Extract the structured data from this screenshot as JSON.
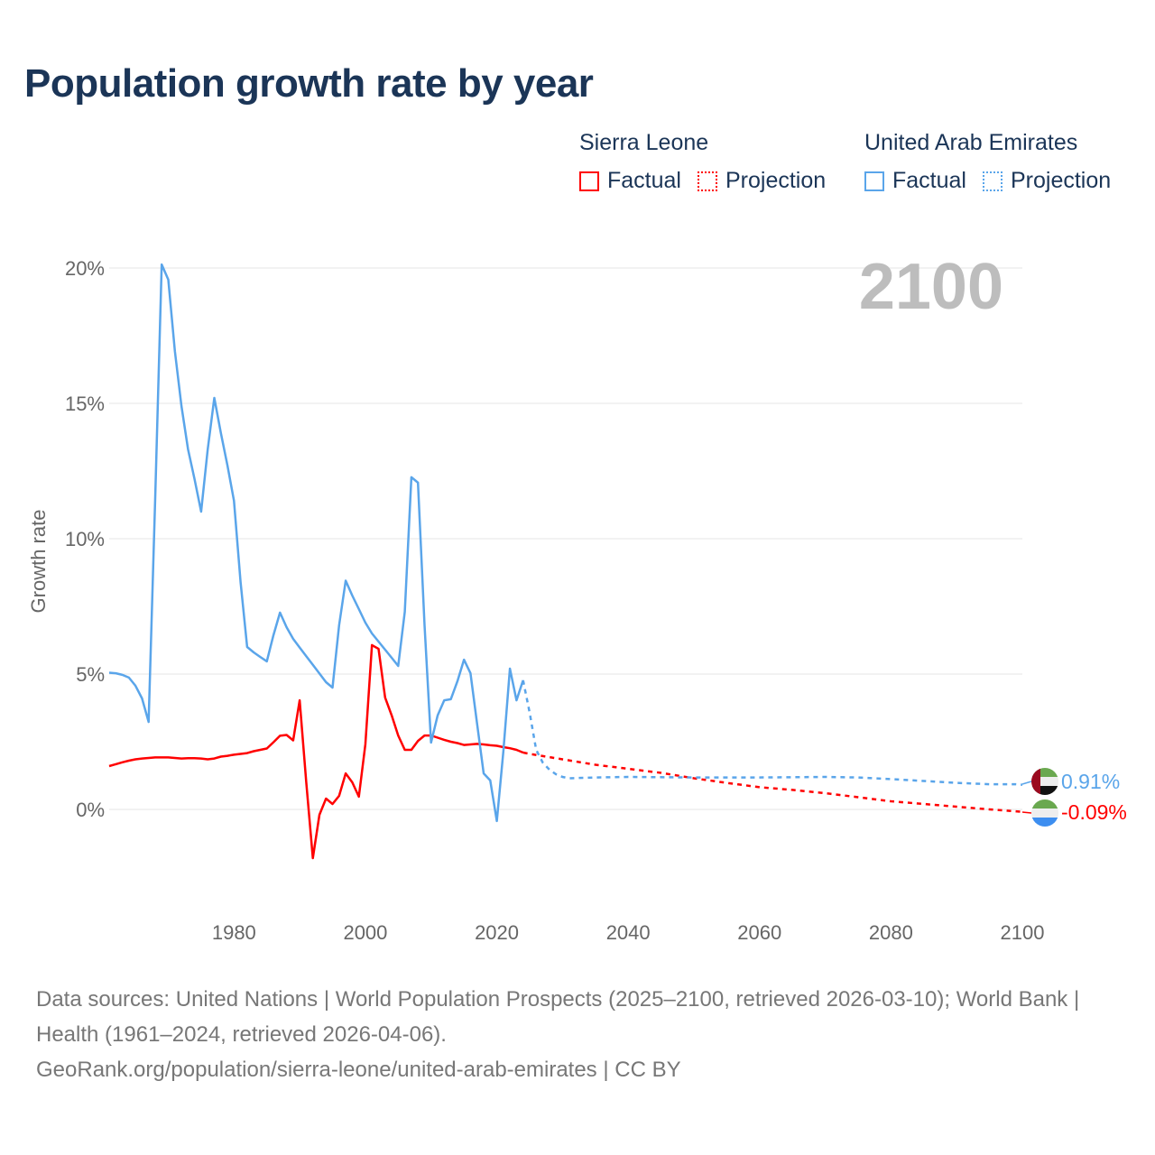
{
  "title": "Population growth rate by year",
  "legend": {
    "groups": [
      {
        "name": "Sierra Leone",
        "factual": "Factual",
        "projection": "Projection",
        "color": "#ff0000"
      },
      {
        "name": "United Arab Emirates",
        "factual": "Factual",
        "projection": "Projection",
        "color": "#5aa5ea"
      }
    ]
  },
  "year_label": "2100",
  "footer": {
    "sources": "Data sources: United Nations | World Population Prospects (2025–2100, retrieved 2026-03-10); World Bank | Health (1961–2024, retrieved 2026-04-06).",
    "url": "GeoRank.org/population/sierra-leone/united-arab-emirates | CC BY"
  },
  "chart_data": {
    "type": "line",
    "title": "Population growth rate by year",
    "xlabel": "",
    "ylabel": "Growth rate",
    "xlim": [
      1961,
      2100
    ],
    "ylim": [
      -3.5,
      20.5
    ],
    "x_ticks": [
      1980,
      2000,
      2020,
      2040,
      2060,
      2080,
      2100
    ],
    "x_tick_labels": [
      "1980",
      "2000",
      "2020",
      "2040",
      "2060",
      "2080",
      "2100"
    ],
    "y_ticks": [
      0,
      5,
      10,
      15,
      20
    ],
    "y_tick_labels": [
      "0%",
      "5%",
      "10%",
      "15%",
      "20%"
    ],
    "grid": true,
    "series": [
      {
        "name": "Sierra Leone",
        "color": "#ff0000",
        "end_label": "-0.09%",
        "factual": {
          "x": [
            1961,
            1962,
            1963,
            1964,
            1965,
            1966,
            1967,
            1968,
            1969,
            1970,
            1971,
            1972,
            1973,
            1974,
            1975,
            1976,
            1977,
            1978,
            1979,
            1980,
            1981,
            1982,
            1983,
            1984,
            1985,
            1986,
            1987,
            1988,
            1989,
            1990,
            1991,
            1992,
            1993,
            1994,
            1995,
            1996,
            1997,
            1998,
            1999,
            2000,
            2001,
            2002,
            2003,
            2004,
            2005,
            2006,
            2007,
            2008,
            2009,
            2010,
            2011,
            2012,
            2013,
            2014,
            2015,
            2016,
            2017,
            2018,
            2019,
            2020,
            2021,
            2022,
            2023,
            2024
          ],
          "y": [
            1.6,
            1.67,
            1.74,
            1.8,
            1.85,
            1.88,
            1.9,
            1.92,
            1.92,
            1.92,
            1.9,
            1.88,
            1.89,
            1.89,
            1.88,
            1.85,
            1.88,
            1.95,
            1.98,
            2.02,
            2.05,
            2.08,
            2.15,
            2.2,
            2.25,
            2.48,
            2.72,
            2.75,
            2.55,
            4.03,
            1.0,
            -1.8,
            -0.2,
            0.4,
            0.2,
            0.5,
            1.33,
            1.0,
            0.47,
            2.4,
            6.07,
            5.93,
            4.13,
            3.47,
            2.73,
            2.2,
            2.2,
            2.53,
            2.73,
            2.73,
            2.65,
            2.57,
            2.5,
            2.45,
            2.38,
            2.4,
            2.42,
            2.4,
            2.37,
            2.35,
            2.3,
            2.26,
            2.2,
            2.1
          ]
        },
        "projection": {
          "x": [
            2024,
            2025,
            2030,
            2035,
            2040,
            2045,
            2050,
            2055,
            2060,
            2065,
            2070,
            2075,
            2080,
            2085,
            2090,
            2095,
            2100
          ],
          "y": [
            2.1,
            2.05,
            1.85,
            1.65,
            1.5,
            1.35,
            1.15,
            0.98,
            0.82,
            0.72,
            0.6,
            0.45,
            0.3,
            0.2,
            0.1,
            0.0,
            -0.09
          ]
        }
      },
      {
        "name": "United Arab Emirates",
        "color": "#5aa5ea",
        "end_label": "0.91%",
        "factual": {
          "x": [
            1961,
            1962,
            1963,
            1964,
            1965,
            1966,
            1967,
            1968,
            1969,
            1970,
            1971,
            1972,
            1973,
            1974,
            1975,
            1976,
            1977,
            1978,
            1979,
            1980,
            1981,
            1982,
            1983,
            1984,
            1985,
            1986,
            1987,
            1988,
            1989,
            1990,
            1991,
            1992,
            1993,
            1994,
            1995,
            1996,
            1997,
            1998,
            1999,
            2000,
            2001,
            2002,
            2003,
            2004,
            2005,
            2006,
            2007,
            2008,
            2009,
            2010,
            2011,
            2012,
            2013,
            2014,
            2015,
            2016,
            2017,
            2018,
            2019,
            2020,
            2021,
            2022,
            2023,
            2024
          ],
          "y": [
            5.05,
            5.03,
            4.97,
            4.87,
            4.57,
            4.1,
            3.23,
            11.5,
            20.13,
            19.57,
            16.93,
            14.9,
            13.3,
            12.2,
            11.0,
            13.3,
            15.2,
            13.9,
            12.7,
            11.4,
            8.4,
            6.0,
            5.8,
            5.63,
            5.47,
            6.43,
            7.27,
            6.73,
            6.3,
            5.98,
            5.66,
            5.34,
            5.02,
            4.7,
            4.5,
            6.8,
            8.45,
            7.9,
            7.4,
            6.9,
            6.5,
            6.2,
            5.9,
            5.6,
            5.3,
            7.3,
            12.27,
            12.07,
            6.8,
            2.47,
            3.47,
            4.03,
            4.07,
            4.73,
            5.53,
            5.03,
            3.17,
            1.33,
            1.07,
            -0.43,
            2.13,
            5.2,
            4.03,
            4.77
          ]
        },
        "projection": {
          "x": [
            2024,
            2025,
            2026,
            2027,
            2028,
            2029,
            2030,
            2031,
            2035,
            2040,
            2050,
            2060,
            2070,
            2075,
            2080,
            2090,
            2095,
            2099,
            2100
          ],
          "y": [
            4.77,
            3.57,
            2.2,
            1.73,
            1.47,
            1.3,
            1.2,
            1.15,
            1.18,
            1.2,
            1.18,
            1.18,
            1.2,
            1.18,
            1.12,
            0.98,
            0.93,
            0.93,
            0.91
          ]
        }
      }
    ]
  }
}
